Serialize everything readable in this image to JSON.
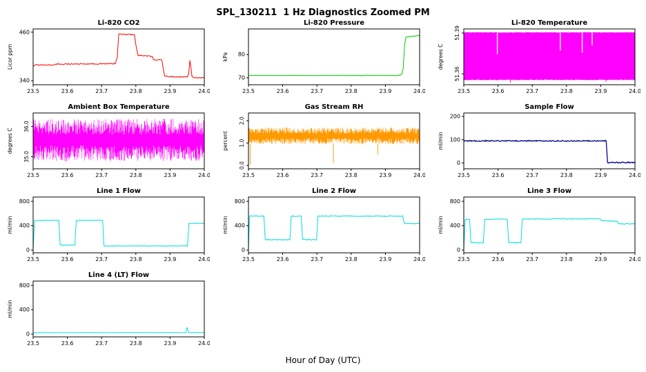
{
  "page_title": "SPL_130211  1 Hz Diagnostics Zoomed PM",
  "xlabel_global": "Hour of Day (UTC)",
  "chart_data": [
    {
      "id": "li820-co2",
      "type": "line",
      "title": "Li-820 CO2",
      "ylabel": "Licor ppm",
      "color": "#ff0000",
      "xlim": [
        23.5,
        24.0
      ],
      "ylim": [
        330,
        468
      ],
      "xticks": [
        23.5,
        23.6,
        23.7,
        23.8,
        23.9,
        24.0
      ],
      "yticks": [
        {
          "v": 340,
          "label": "340"
        },
        {
          "v": 460,
          "label": "460"
        }
      ],
      "ytick_rotate": false,
      "noise": 1.2,
      "width": 1,
      "x": [
        23.5,
        23.505,
        23.56,
        23.57,
        23.74,
        23.746,
        23.75,
        23.796,
        23.8,
        23.806,
        23.848,
        23.852,
        23.876,
        23.88,
        23.884,
        23.9,
        23.95,
        23.954,
        23.958,
        23.964,
        23.968,
        24.0
      ],
      "y": [
        375,
        379,
        379,
        381,
        382,
        400,
        455,
        454,
        430,
        403,
        400,
        392,
        391,
        370,
        352,
        350,
        349,
        355,
        390,
        352,
        348,
        347
      ]
    },
    {
      "id": "li820-pressure",
      "type": "line",
      "title": "Li-820 Pressure",
      "ylabel": "kPa",
      "color": "#00cc00",
      "xlim": [
        23.5,
        24.0
      ],
      "ylim": [
        67,
        91
      ],
      "xticks": [
        23.5,
        23.6,
        23.7,
        23.8,
        23.9,
        24.0
      ],
      "yticks": [
        {
          "v": 70,
          "label": "70"
        },
        {
          "v": 80,
          "label": "80"
        }
      ],
      "ytick_rotate": false,
      "noise": 0.12,
      "width": 1,
      "x": [
        23.5,
        23.94,
        23.948,
        23.952,
        23.956,
        23.96,
        24.0
      ],
      "y": [
        71,
        71,
        71.5,
        74,
        84,
        87.5,
        88.2
      ]
    },
    {
      "id": "li820-temperature",
      "type": "vnoise",
      "title": "Li-820 Temperature",
      "ylabel": "degrees C",
      "color": "#ff00ff",
      "xlim": [
        23.5,
        24.0
      ],
      "ylim": [
        51.352,
        51.393
      ],
      "xticks": [
        23.5,
        23.6,
        23.7,
        23.8,
        23.9,
        24.0
      ],
      "yticks": [
        {
          "v": 51.36,
          "label": "51.36"
        },
        {
          "v": 51.39,
          "label": "51.39"
        }
      ],
      "ytick_rotate": true,
      "band": {
        "ymin": 51.356,
        "ymax": 51.39
      },
      "full": true,
      "step": 0.0008,
      "jitter": 0.0007,
      "swidth": 0.9,
      "dips": [
        {
          "x": 23.598,
          "top": 51.3745
        },
        {
          "x": 23.782,
          "top": 51.377
        },
        {
          "x": 23.846,
          "top": 51.3755
        },
        {
          "x": 23.875,
          "top": 51.381
        }
      ],
      "spikes": [
        {
          "x": 23.636,
          "bottom": 51.3535
        },
        {
          "x": 23.915,
          "bottom": 51.354
        }
      ]
    },
    {
      "id": "ambient-box-temperature",
      "type": "vnoise",
      "title": "Ambient Box Temperature",
      "ylabel": "degrees C",
      "color": "#ff00ff",
      "xlim": [
        23.5,
        24.0
      ],
      "ylim": [
        34.6,
        36.45
      ],
      "xticks": [
        23.5,
        23.6,
        23.7,
        23.8,
        23.9,
        24.0
      ],
      "yticks": [
        {
          "v": 35.0,
          "label": "35.0"
        },
        {
          "v": 36.0,
          "label": "36.0"
        }
      ],
      "ytick_rotate": true,
      "band": {
        "ymin": 34.85,
        "ymax": 36.25
      },
      "full": false,
      "step": 0.0012,
      "swidth": 0.6,
      "dips": [],
      "spikes": []
    },
    {
      "id": "gas-stream-rh",
      "type": "vnoise",
      "title": "Gas Stream RH",
      "ylabel": "percent",
      "color": "#ff9900",
      "xlim": [
        23.5,
        24.0
      ],
      "ylim": [
        -0.15,
        2.35
      ],
      "xticks": [
        23.5,
        23.6,
        23.7,
        23.8,
        23.9,
        24.0
      ],
      "yticks": [
        {
          "v": 0.0,
          "label": "0.0"
        },
        {
          "v": 1.0,
          "label": "1.0"
        },
        {
          "v": 2.0,
          "label": "2.0"
        }
      ],
      "ytick_rotate": true,
      "band": {
        "ymin": 0.95,
        "ymax": 1.7
      },
      "full": false,
      "step": 0.0012,
      "swidth": 0.6,
      "dips": [],
      "spikes": [
        {
          "x": 23.505,
          "bottom": 0.05
        },
        {
          "x": 23.748,
          "bottom": 0.1
        },
        {
          "x": 23.878,
          "bottom": 0.5
        }
      ]
    },
    {
      "id": "sample-flow",
      "type": "line",
      "title": "Sample Flow",
      "ylabel": "ml/min",
      "color": "#00008b",
      "xlim": [
        23.5,
        24.0
      ],
      "ylim": [
        -25,
        215
      ],
      "xticks": [
        23.5,
        23.6,
        23.7,
        23.8,
        23.9,
        24.0
      ],
      "yticks": [
        {
          "v": 0,
          "label": "0"
        },
        {
          "v": 100,
          "label": "100"
        },
        {
          "v": 200,
          "label": "200"
        }
      ],
      "ytick_rotate": false,
      "noise": 2.5,
      "width": 1.3,
      "x": [
        23.5,
        23.916,
        23.92,
        24.0
      ],
      "y": [
        95,
        95,
        2,
        2
      ]
    },
    {
      "id": "line1-flow",
      "type": "line",
      "title": "Line 1 Flow",
      "ylabel": "ml/min",
      "color": "#00dddd",
      "xlim": [
        23.5,
        24.0
      ],
      "ylim": [
        -45,
        870
      ],
      "xticks": [
        23.5,
        23.6,
        23.7,
        23.8,
        23.9,
        24.0
      ],
      "yticks": [
        {
          "v": 0,
          "label": "0"
        },
        {
          "v": 400,
          "label": "400"
        },
        {
          "v": 800,
          "label": "800"
        }
      ],
      "ytick_rotate": false,
      "noise": 5,
      "width": 1,
      "x": [
        23.5,
        23.504,
        23.575,
        23.579,
        23.622,
        23.626,
        23.703,
        23.707,
        23.951,
        23.955,
        24.0
      ],
      "y": [
        0,
        486,
        488,
        82,
        82,
        487,
        489,
        68,
        69,
        437,
        440
      ]
    },
    {
      "id": "line2-flow",
      "type": "line",
      "title": "Line 2 Flow",
      "ylabel": "ml/min",
      "color": "#00dddd",
      "xlim": [
        23.5,
        24.0
      ],
      "ylim": [
        -45,
        870
      ],
      "xticks": [
        23.5,
        23.6,
        23.7,
        23.8,
        23.9,
        24.0
      ],
      "yticks": [
        {
          "v": 0,
          "label": "0"
        },
        {
          "v": 400,
          "label": "400"
        },
        {
          "v": 800,
          "label": "800"
        }
      ],
      "ytick_rotate": false,
      "noise": 7,
      "width": 1,
      "x": [
        23.5,
        23.503,
        23.545,
        23.549,
        23.621,
        23.625,
        23.654,
        23.658,
        23.699,
        23.703,
        23.951,
        23.955,
        24.0
      ],
      "y": [
        0,
        557,
        559,
        172,
        170,
        557,
        559,
        173,
        171,
        558,
        556,
        434,
        437
      ]
    },
    {
      "id": "line3-flow",
      "type": "line",
      "title": "Line 3 Flow",
      "ylabel": "ml/min",
      "color": "#00dddd",
      "xlim": [
        23.5,
        24.0
      ],
      "ylim": [
        -45,
        870
      ],
      "xticks": [
        23.5,
        23.6,
        23.7,
        23.8,
        23.9,
        24.0
      ],
      "yticks": [
        {
          "v": 0,
          "label": "0"
        },
        {
          "v": 400,
          "label": "400"
        },
        {
          "v": 800,
          "label": "800"
        }
      ],
      "ytick_rotate": false,
      "noise": 7,
      "width": 1,
      "x": [
        23.5,
        23.504,
        23.517,
        23.521,
        23.557,
        23.561,
        23.627,
        23.631,
        23.667,
        23.671,
        23.898,
        23.903,
        23.948,
        23.952,
        24.0
      ],
      "y": [
        0,
        503,
        505,
        121,
        119,
        504,
        507,
        121,
        120,
        509,
        514,
        477,
        476,
        429,
        431
      ]
    },
    {
      "id": "line4-lt-flow",
      "type": "line",
      "title": "Line 4 (LT) Flow",
      "ylabel": "ml/min",
      "color": "#00dddd",
      "xlim": [
        23.5,
        24.0
      ],
      "ylim": [
        -45,
        870
      ],
      "xticks": [
        23.5,
        23.6,
        23.7,
        23.8,
        23.9,
        24.0
      ],
      "yticks": [
        {
          "v": 0,
          "label": "0"
        },
        {
          "v": 400,
          "label": "400"
        },
        {
          "v": 800,
          "label": "800"
        }
      ],
      "ytick_rotate": false,
      "noise": 2.5,
      "width": 1,
      "x": [
        23.5,
        23.946,
        23.95,
        23.954,
        24.0
      ],
      "y": [
        24,
        25,
        108,
        25,
        26
      ]
    }
  ]
}
